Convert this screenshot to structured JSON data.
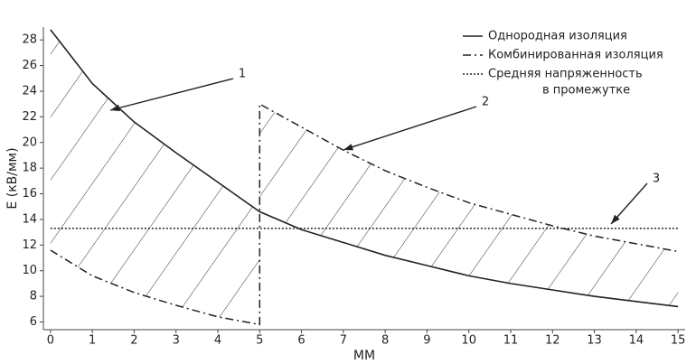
{
  "chart_data": {
    "type": "line",
    "xlabel": "ММ",
    "ylabel": "E (кВ/мм)",
    "xlim": [
      -0.17,
      15.17
    ],
    "ylim": [
      5.4,
      29
    ],
    "xticks": [
      0,
      1,
      2,
      3,
      4,
      5,
      6,
      7,
      8,
      9,
      10,
      11,
      12,
      13,
      14,
      15
    ],
    "yticks": [
      6,
      8,
      10,
      12,
      14,
      16,
      18,
      20,
      22,
      24,
      26,
      28
    ],
    "annotations": [
      "1",
      "2",
      "3"
    ],
    "series": [
      {
        "name": "Однородная изоляция",
        "color": "#222222",
        "style": "solid",
        "x": [
          0,
          1,
          2,
          3,
          4,
          5,
          6,
          7,
          8,
          9,
          10,
          11,
          12,
          13,
          14,
          15
        ],
        "values": [
          28.8,
          24.6,
          21.6,
          19.2,
          16.9,
          14.6,
          13.2,
          12.2,
          11.2,
          10.4,
          9.6,
          9.0,
          8.5,
          8.0,
          7.6,
          7.2
        ]
      },
      {
        "name": "Комбинированная изоляция",
        "color": "#222222",
        "style": "dashdot",
        "x": [
          0,
          1,
          2,
          3,
          4,
          5,
          5,
          6,
          7,
          8,
          9,
          10,
          11,
          12,
          13,
          14,
          15
        ],
        "values": [
          11.6,
          9.6,
          8.3,
          7.3,
          6.4,
          5.8,
          23.0,
          21.2,
          19.4,
          17.8,
          16.5,
          15.3,
          14.4,
          13.5,
          12.7,
          12.1,
          11.5
        ]
      },
      {
        "name": [
          "Средняя напряженность",
          "в промежутке"
        ],
        "color": "#222222",
        "style": "dotted",
        "x": [
          0,
          15
        ],
        "values": [
          13.3,
          13.3
        ]
      }
    ]
  }
}
